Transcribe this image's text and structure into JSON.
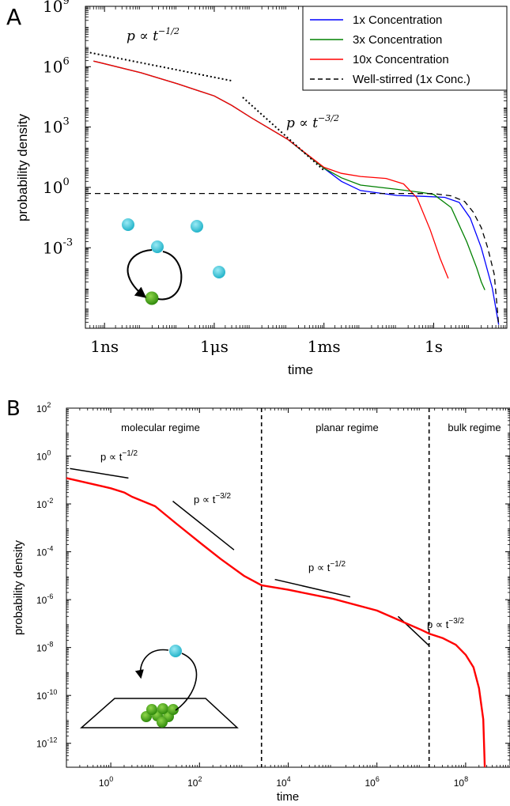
{
  "chart_data": [
    {
      "panel": "A",
      "type": "line",
      "xlabel": "time",
      "ylabel": "probability density",
      "x_ticks": [
        {
          "value": 1e-09,
          "label": "1ns"
        },
        {
          "value": 1e-06,
          "label": "1μs"
        },
        {
          "value": 0.001,
          "label": "1ms"
        },
        {
          "value": 1,
          "label": "1s"
        }
      ],
      "y_ticks": [
        {
          "base": "10",
          "exp": "9",
          "value": 1000000000.0
        },
        {
          "base": "10",
          "exp": "6",
          "value": 1000000.0
        },
        {
          "base": "10",
          "exp": "3",
          "value": 1000.0
        },
        {
          "base": "10",
          "exp": "0",
          "value": 1
        },
        {
          "base": "10",
          "exp": "-3",
          "value": 0.001
        }
      ],
      "xlim": [
        3e-10,
        100
      ],
      "ylim": [
        1e-07,
        1000000000.0
      ],
      "xscale": "log",
      "yscale": "log",
      "legend_position": "top-right",
      "series": [
        {
          "name": "1x Concentration",
          "color": "#0000ff",
          "style": "solid",
          "points": [
            [
              5e-10,
              1900000.0
            ],
            [
              1e-08,
              500000.0
            ],
            [
              1e-07,
              140000.0
            ],
            [
              1e-06,
              35000.0
            ],
            [
              3e-06,
              12000.0
            ],
            [
              1e-05,
              3000.0
            ],
            [
              0.0001,
              250.0
            ],
            [
              0.001,
              9
            ],
            [
              0.003,
              2
            ],
            [
              0.01,
              0.7
            ],
            [
              0.1,
              0.4
            ],
            [
              0.5,
              0.36
            ],
            [
              2,
              0.32
            ],
            [
              5,
              0.18
            ],
            [
              10,
              0.03
            ],
            [
              20,
              0.001
            ],
            [
              40,
              1e-05
            ],
            [
              60,
              1.5e-07
            ]
          ]
        },
        {
          "name": "3x Concentration",
          "color": "#008000",
          "style": "solid",
          "points": [
            [
              5e-10,
              1900000.0
            ],
            [
              1e-08,
              500000.0
            ],
            [
              1e-07,
              140000.0
            ],
            [
              1e-06,
              35000.0
            ],
            [
              3e-06,
              12000.0
            ],
            [
              1e-05,
              3000.0
            ],
            [
              0.0001,
              250.0
            ],
            [
              0.001,
              9
            ],
            [
              0.003,
              3
            ],
            [
              0.01,
              1.3
            ],
            [
              0.1,
              0.8
            ],
            [
              0.5,
              0.55
            ],
            [
              1,
              0.45
            ],
            [
              3,
              0.1
            ],
            [
              8,
              0.002
            ],
            [
              15,
              0.0001
            ],
            [
              20,
              2e-05
            ],
            [
              25,
              8e-06
            ]
          ]
        },
        {
          "name": "10x Concentration",
          "color": "#ff0000",
          "style": "solid",
          "points": [
            [
              5e-10,
              1900000.0
            ],
            [
              1e-08,
              500000.0
            ],
            [
              1e-07,
              140000.0
            ],
            [
              1e-06,
              35000.0
            ],
            [
              3e-06,
              12000.0
            ],
            [
              1e-05,
              3000.0
            ],
            [
              0.0001,
              250.0
            ],
            [
              0.001,
              10
            ],
            [
              0.003,
              5
            ],
            [
              0.01,
              3.5
            ],
            [
              0.05,
              2.8
            ],
            [
              0.15,
              1.5
            ],
            [
              0.35,
              0.3
            ],
            [
              0.8,
              0.008
            ],
            [
              1.5,
              0.0003
            ],
            [
              2.5,
              3e-05
            ]
          ]
        },
        {
          "name": "Well-stirred (1x Conc.)",
          "color": "#000000",
          "style": "dashed",
          "points": [
            [
              3e-10,
              0.5
            ],
            [
              1e-09,
              0.5
            ],
            [
              1e-06,
              0.5
            ],
            [
              0.001,
              0.5
            ],
            [
              0.1,
              0.5
            ],
            [
              1,
              0.49
            ],
            [
              3,
              0.38
            ],
            [
              7,
              0.2
            ],
            [
              12,
              0.06
            ],
            [
              20,
              0.01
            ],
            [
              30,
              0.001
            ],
            [
              45,
              5e-05
            ],
            [
              60,
              1.5e-07
            ]
          ]
        }
      ],
      "annotations": [
        {
          "text_lhs": "p ∝ t",
          "text_exp": "−1/2",
          "slope_points": [
            [
              4e-10,
              5000000.0
            ],
            [
              3e-06,
              200000.0
            ]
          ]
        },
        {
          "text_lhs": "p ∝ t",
          "text_exp": "−3/2",
          "slope_points": [
            [
              6e-06,
              30000.0
            ],
            [
              0.001,
              7
            ]
          ]
        }
      ]
    },
    {
      "panel": "B",
      "type": "line",
      "xlabel": "time",
      "ylabel": "probability density",
      "x_ticks": [
        {
          "base": "10",
          "exp": "0",
          "value": 1
        },
        {
          "base": "10",
          "exp": "2",
          "value": 100
        },
        {
          "base": "10",
          "exp": "4",
          "value": 10000
        },
        {
          "base": "10",
          "exp": "6",
          "value": 1000000
        },
        {
          "base": "10",
          "exp": "8",
          "value": 100000000
        }
      ],
      "y_ticks": [
        {
          "base": "10",
          "exp": "2",
          "value": 100
        },
        {
          "base": "10",
          "exp": "0",
          "value": 1
        },
        {
          "base": "10",
          "exp": "-2",
          "value": 0.01
        },
        {
          "base": "10",
          "exp": "-4",
          "value": 0.0001
        },
        {
          "base": "10",
          "exp": "-6",
          "value": 1e-06
        },
        {
          "base": "10",
          "exp": "-8",
          "value": 1e-08
        },
        {
          "base": "10",
          "exp": "-10",
          "value": 1e-10
        },
        {
          "base": "10",
          "exp": "-12",
          "value": 1e-12
        }
      ],
      "xlim": [
        0.1,
        1000000000.0
      ],
      "ylim": [
        1e-13,
        100
      ],
      "xscale": "log",
      "yscale": "log",
      "regimes": [
        {
          "label": "molecular regime",
          "x_center": 3.6
        },
        {
          "label": "planar regime",
          "x_center": 63000
        },
        {
          "label": "bulk regime",
          "x_center": 430000000.0
        }
      ],
      "regime_boundaries": [
        2500,
        15000000.0
      ],
      "series": [
        {
          "name": "",
          "color": "#ff0000",
          "style": "solid",
          "points": [
            [
              0.1,
              0.12
            ],
            [
              1,
              0.045
            ],
            [
              2,
              0.03
            ],
            [
              3,
              0.02
            ],
            [
              10,
              0.008
            ],
            [
              30,
              0.0015
            ],
            [
              100,
              0.00025
            ],
            [
              300,
              5e-05
            ],
            [
              1000,
              1e-05
            ],
            [
              2500,
              4e-06
            ],
            [
              10000,
              2.6e-06
            ],
            [
              100000,
              1.1e-06
            ],
            [
              1000000.0,
              3.5e-07
            ],
            [
              10000000.0,
              5.5e-08
            ],
            [
              15000000.0,
              3.8e-08
            ],
            [
              30000000.0,
              2.5e-08
            ],
            [
              60000000.0,
              1.3e-08
            ],
            [
              100000000.0,
              5e-09
            ],
            [
              150000000.0,
              1.5e-09
            ],
            [
              200000000.0,
              2e-10
            ],
            [
              250000000.0,
              1e-11
            ],
            [
              270000000.0,
              1e-13
            ]
          ]
        }
      ],
      "annotations": [
        {
          "text_lhs": "p ∝ t",
          "text_exp": "−1/2",
          "slope_points": [
            [
              0.12,
              0.3
            ],
            [
              2.5,
              0.12
            ]
          ]
        },
        {
          "text_lhs": "p ∝ t",
          "text_exp": "−3/2",
          "slope_points": [
            [
              25,
              0.013
            ],
            [
              600,
              0.00012
            ]
          ]
        },
        {
          "text_lhs": "p ∝ t",
          "text_exp": "−1/2",
          "slope_points": [
            [
              5000,
              7e-06
            ],
            [
              250000,
              1.3e-06
            ]
          ]
        },
        {
          "text_lhs": "p ∝ t",
          "text_exp": "−3/2",
          "slope_points": [
            [
              3000000.0,
              2e-07
            ],
            [
              15000000.0,
              1.2e-08
            ]
          ]
        }
      ]
    }
  ],
  "panel_a": {
    "panel_letter": "A",
    "xlabel": "time",
    "ylabel": "probability density",
    "legend": [
      {
        "label": "1x Concentration",
        "color": "#0000ff"
      },
      {
        "label": "3x Concentration",
        "color": "#008000"
      },
      {
        "label": "10x Concentration",
        "color": "#ff0000"
      },
      {
        "label": "Well-stirred (1x Conc.)",
        "color": "#000000"
      }
    ],
    "annotation1": {
      "lhs": "p ∝ t",
      "exp": "−1/2"
    },
    "annotation2": {
      "lhs": "p ∝ t",
      "exp": "−3/2"
    }
  },
  "panel_b": {
    "panel_letter": "B",
    "xlabel": "time",
    "ylabel": "probability density",
    "regime_molecular": "molecular regime",
    "regime_planar": "planar regime",
    "regime_bulk": "bulk regime",
    "annotation1": {
      "lhs": "p ∝ t",
      "exp": "−1/2"
    },
    "annotation2": {
      "lhs": "p ∝ t",
      "exp": "−3/2"
    },
    "annotation3": {
      "lhs": "p ∝ t",
      "exp": "−1/2"
    },
    "annotation4": {
      "lhs": "p ∝ t",
      "exp": "−3/2"
    }
  },
  "colors": {
    "molecule_cyan": "#3cc8dc",
    "molecule_green": "#3c9a14",
    "axis": "#000000"
  }
}
